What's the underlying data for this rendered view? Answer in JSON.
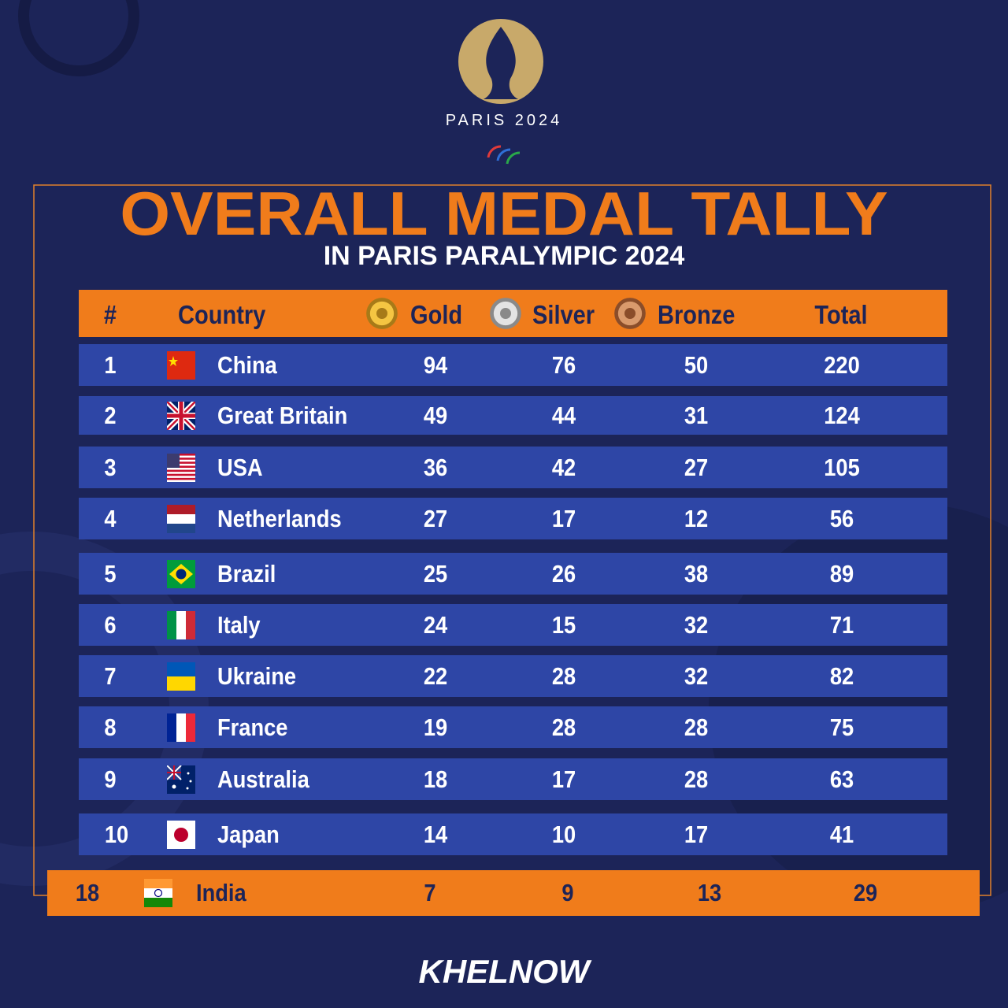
{
  "header": {
    "logo_text": "PARIS 2024",
    "title": "OVERALL MEDAL TALLY",
    "subtitle": "IN PARIS PARALYMPIC 2024"
  },
  "table": {
    "columns": [
      "#",
      "Country",
      "Gold",
      "Silver",
      "Bronze",
      "Total"
    ],
    "rows": [
      [
        1,
        "China",
        94,
        76,
        50,
        220
      ],
      [
        2,
        "Great Britain",
        49,
        44,
        31,
        124
      ],
      [
        3,
        "USA",
        36,
        42,
        27,
        105
      ],
      [
        4,
        "Netherlands",
        27,
        17,
        12,
        56
      ],
      [
        5,
        "Brazil",
        25,
        26,
        38,
        89
      ],
      [
        6,
        "Italy",
        24,
        15,
        32,
        71
      ],
      [
        7,
        "Ukraine",
        22,
        28,
        32,
        82
      ],
      [
        8,
        "France",
        19,
        28,
        28,
        75
      ],
      [
        9,
        "Australia",
        18,
        17,
        28,
        63
      ],
      [
        10,
        "Japan",
        14,
        10,
        17,
        41
      ]
    ],
    "highlight_row": [
      18,
      "India",
      7,
      9,
      13,
      29
    ]
  },
  "footer": {
    "brand": "KHELNOW"
  }
}
